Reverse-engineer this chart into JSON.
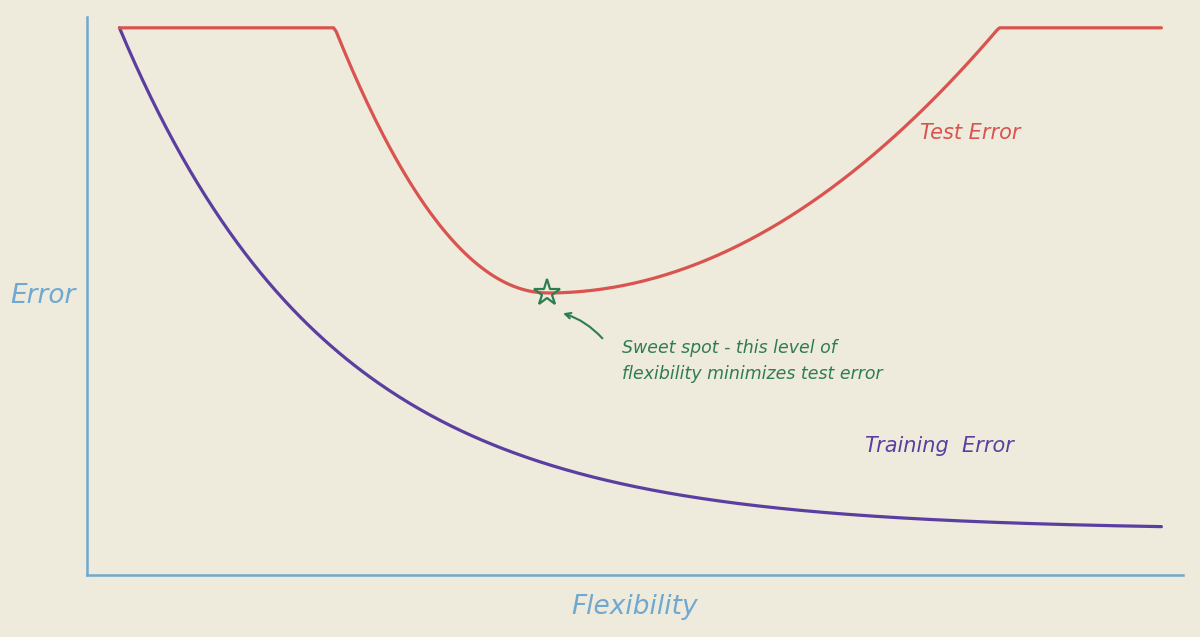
{
  "background_color": "#eeeadc",
  "axis_color": "#6fa8d0",
  "test_error_color": "#d9534f",
  "train_error_color": "#5b3fa0",
  "sweet_spot_color": "#2e7d4f",
  "annotation_color": "#2e7d4f",
  "error_label_color": "#6fa8d0",
  "flexibility_label_color": "#6fa8d0",
  "xlabel": "Flexibility",
  "ylabel": "Error",
  "test_error_label": "Test Error",
  "train_error_label": "Training  Error",
  "sweet_spot_text_line1": "Sweet spot - this level of",
  "sweet_spot_text_line2": "flexibility minimizes test error",
  "xlim": [
    0,
    10
  ],
  "ylim": [
    0,
    10
  ],
  "sweet_spot_x": 4.2,
  "sweet_spot_y": 5.05
}
